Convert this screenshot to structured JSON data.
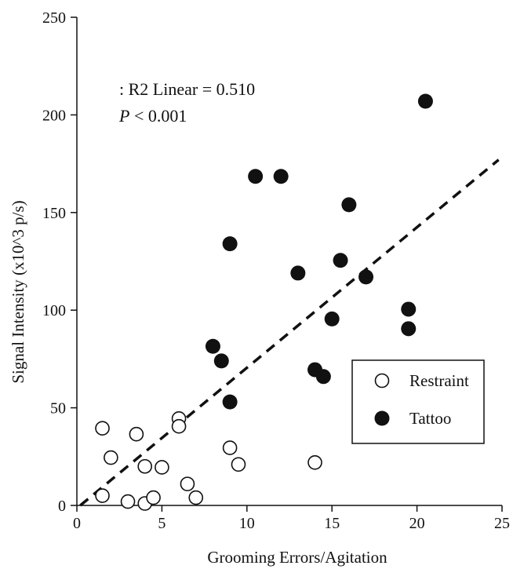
{
  "chart_data": {
    "type": "scatter",
    "xlabel": "Grooming Errors/Agitation",
    "ylabel": "Signal Intensity (x10^3 p/s)",
    "xlim": [
      0,
      25
    ],
    "ylim": [
      0,
      250
    ],
    "xticks": [
      0,
      5,
      10,
      15,
      20,
      25
    ],
    "yticks": [
      0,
      50,
      100,
      150,
      200,
      250
    ],
    "grid": false,
    "legend_position": "lower-right",
    "annotations": {
      "r2": ": R2 Linear  = 0.510",
      "p_italic": "P",
      "p_rest": " < 0.001"
    },
    "fit_line": {
      "style": "dashed",
      "color": "#111111",
      "start": {
        "x": 0.2,
        "y": 0
      },
      "end": {
        "x": 24.8,
        "y": 177
      }
    },
    "series": [
      {
        "name": "Restraint",
        "marker": "open-circle",
        "color": "#111111",
        "points": [
          {
            "x": 1.5,
            "y": 39.5
          },
          {
            "x": 1.5,
            "y": 5
          },
          {
            "x": 2,
            "y": 24.5
          },
          {
            "x": 3,
            "y": 2
          },
          {
            "x": 3.5,
            "y": 36.5
          },
          {
            "x": 4,
            "y": 20
          },
          {
            "x": 4,
            "y": 1
          },
          {
            "x": 4.5,
            "y": 4
          },
          {
            "x": 5,
            "y": 19.5
          },
          {
            "x": 6,
            "y": 44.5
          },
          {
            "x": 6,
            "y": 40.5
          },
          {
            "x": 6.5,
            "y": 11
          },
          {
            "x": 7,
            "y": 4
          },
          {
            "x": 9,
            "y": 29.5
          },
          {
            "x": 9.5,
            "y": 21
          },
          {
            "x": 14,
            "y": 22
          }
        ]
      },
      {
        "name": "Tattoo",
        "marker": "filled-circle",
        "color": "#111111",
        "points": [
          {
            "x": 8,
            "y": 81.5
          },
          {
            "x": 8.5,
            "y": 74
          },
          {
            "x": 9,
            "y": 53
          },
          {
            "x": 9,
            "y": 134
          },
          {
            "x": 10.5,
            "y": 168.5
          },
          {
            "x": 12,
            "y": 168.5
          },
          {
            "x": 13,
            "y": 119
          },
          {
            "x": 14,
            "y": 69.5
          },
          {
            "x": 14.5,
            "y": 66
          },
          {
            "x": 15,
            "y": 95.5
          },
          {
            "x": 15.5,
            "y": 125.5
          },
          {
            "x": 16,
            "y": 154
          },
          {
            "x": 17,
            "y": 117
          },
          {
            "x": 19.5,
            "y": 100.5
          },
          {
            "x": 19.5,
            "y": 90.5
          },
          {
            "x": 20.5,
            "y": 207
          }
        ]
      }
    ]
  }
}
